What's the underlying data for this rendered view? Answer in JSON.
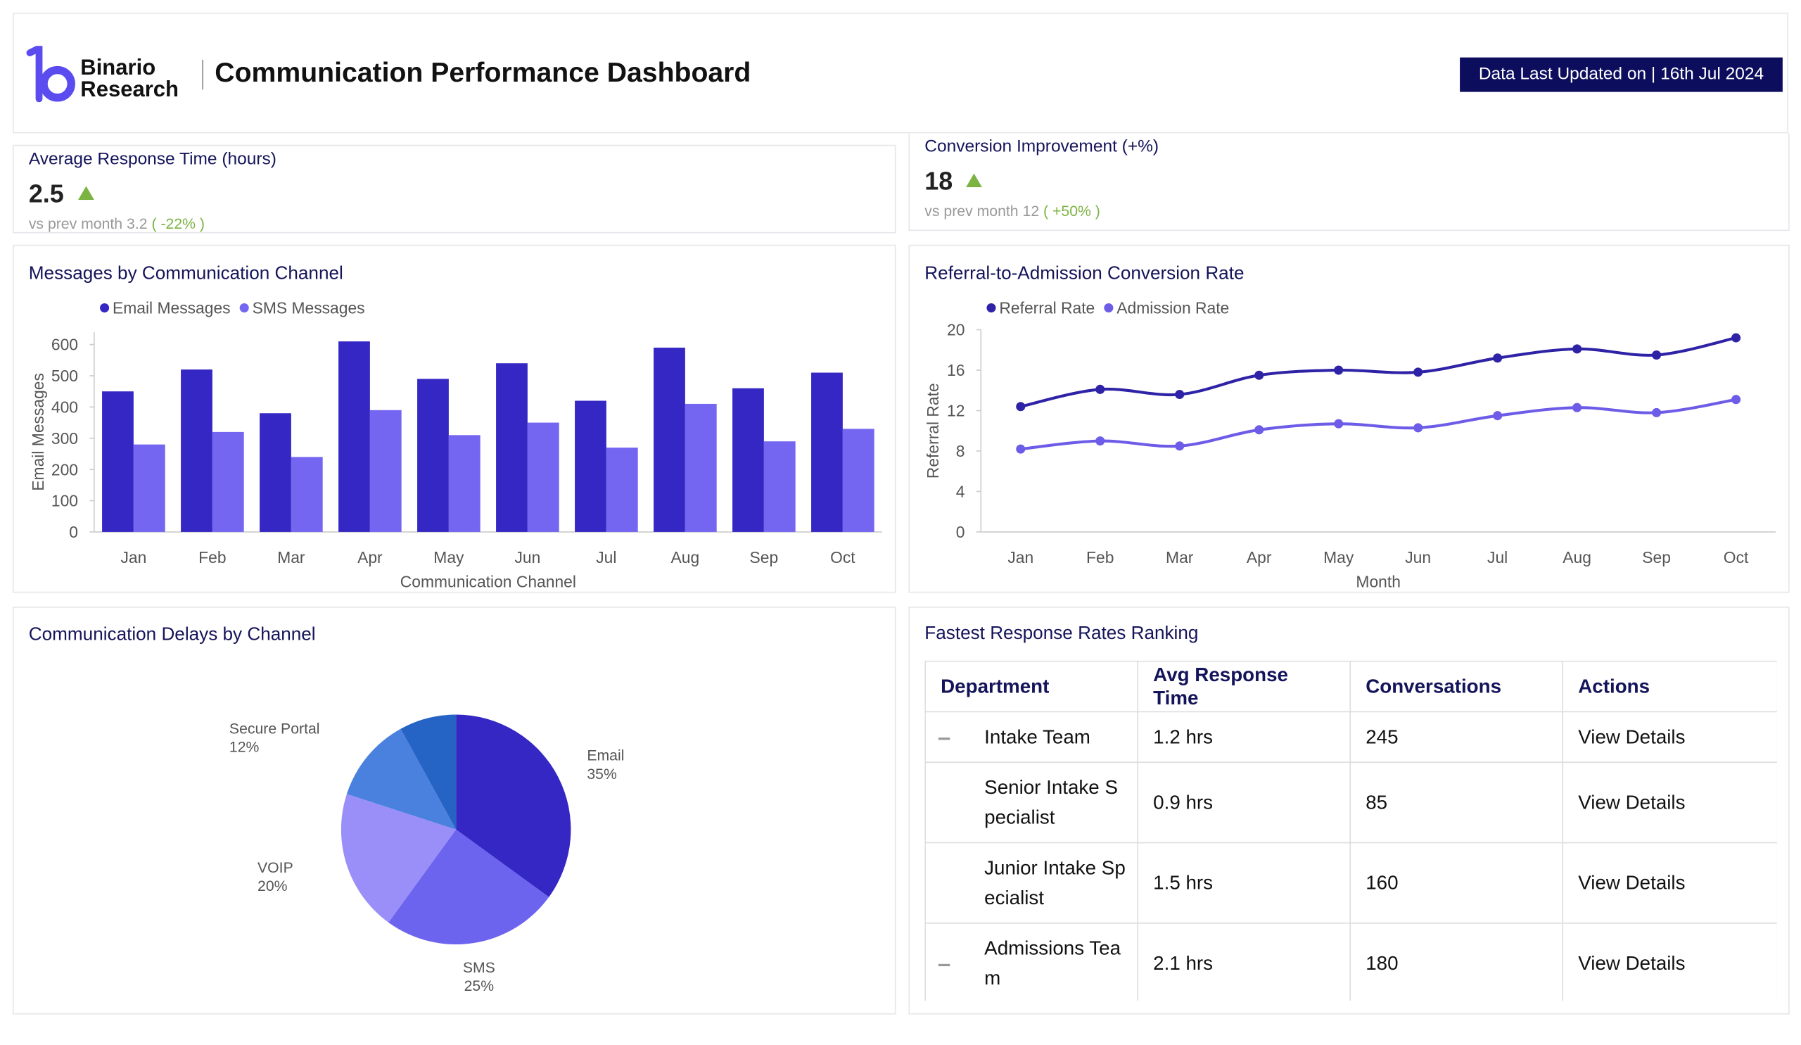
{
  "header": {
    "logo_top": "Binario",
    "logo_bottom": "Research",
    "title": "Communication Performance Dashboard",
    "updated": "Data Last Updated on | 16th Jul 2024"
  },
  "kpis": [
    {
      "title": "Average Response Time (hours)",
      "value": 2.5,
      "comparison_label": "vs prev month",
      "previous": 3.2,
      "change": "( -22% )"
    },
    {
      "title": "Conversion Improvement (+%)",
      "value": 18,
      "comparison_label": "vs prev month",
      "previous": 12,
      "change": "( +50% )"
    }
  ],
  "chart_data": [
    {
      "type": "bar",
      "title": "Messages by Communication Channel",
      "categories": [
        "Jan",
        "Feb",
        "Mar",
        "Apr",
        "May",
        "Jun",
        "Jul",
        "Aug",
        "Sep",
        "Oct"
      ],
      "series": [
        {
          "name": "Email Messages",
          "color": "#3527c4",
          "values": [
            450,
            520,
            380,
            610,
            490,
            540,
            420,
            590,
            460,
            510
          ]
        },
        {
          "name": "SMS Messages",
          "color": "#7466f0",
          "values": [
            280,
            320,
            240,
            390,
            310,
            350,
            270,
            410,
            290,
            330
          ]
        }
      ],
      "x_label": "Communication Channel",
      "y_label": "Email Messages",
      "ylim": [
        0,
        640
      ],
      "yticks": [
        0,
        100,
        200,
        300,
        400,
        500,
        600
      ],
      "legend": "top-left"
    },
    {
      "type": "line",
      "title": "Referral-to-Admission Conversion Rate",
      "categories": [
        "Jan",
        "Feb",
        "Mar",
        "Apr",
        "May",
        "Jun",
        "Jul",
        "Aug",
        "Sep",
        "Oct"
      ],
      "series": [
        {
          "name": "Referral Rate",
          "color": "#2e22a6",
          "values": [
            12.4,
            14.1,
            13.6,
            15.5,
            16.0,
            15.8,
            17.2,
            18.1,
            17.5,
            19.2
          ]
        },
        {
          "name": "Admission Rate",
          "color": "#6c5ce7",
          "values": [
            8.2,
            9.0,
            8.5,
            10.1,
            10.7,
            10.3,
            11.5,
            12.3,
            11.8,
            13.1
          ]
        }
      ],
      "x_label": "Month",
      "y_label": "Referral Rate",
      "ylim": [
        0,
        20
      ],
      "yticks": [
        0,
        4,
        8,
        12,
        16,
        20
      ],
      "legend": "top-left"
    },
    {
      "type": "pie",
      "title": "Communication Delays by Channel",
      "categories": [
        "Email",
        "SMS",
        "VOIP",
        "Secure Portal",
        null
      ],
      "values": [
        35,
        25,
        20,
        12,
        8
      ],
      "value_labels": [
        "35%",
        "25%",
        "20%",
        "12%",
        null
      ],
      "colors": [
        "#3527c4",
        "#6c63ee",
        "#9a8ff8",
        "#4a80de",
        "#2563c4"
      ]
    }
  ],
  "table": {
    "title": "Fastest Response Rates Ranking",
    "columns": [
      "Department",
      "Avg Response Time",
      "Conversations",
      "Actions"
    ],
    "rows": [
      [
        "Intake Team",
        "1.2 hrs",
        245,
        "View Details"
      ],
      [
        "Senior Intake Specialist",
        "0.9 hrs",
        85,
        "View Details"
      ],
      [
        "Junior Intake Specialist",
        "1.5 hrs",
        160,
        "View Details"
      ],
      [
        "Admissions Team",
        "2.1 hrs",
        180,
        "View Details"
      ]
    ]
  }
}
